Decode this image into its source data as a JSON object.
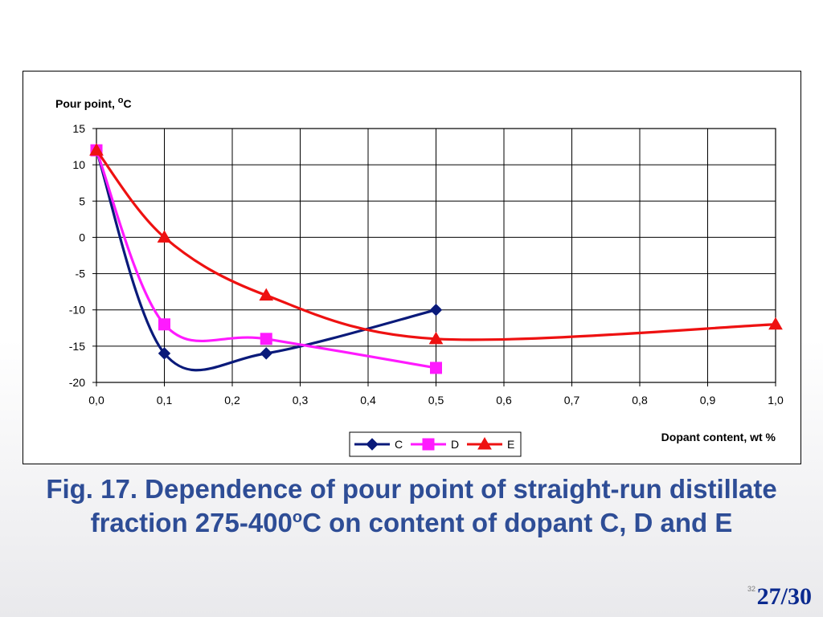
{
  "chart_data": {
    "type": "line",
    "ylabel": "Pour point, ",
    "ylabel_unit_sup": "o",
    "ylabel_unit": "C",
    "xlabel": "Dopant content, wt %",
    "xlim": [
      0,
      1
    ],
    "ylim": [
      -20,
      15
    ],
    "x_ticks": [
      "0,0",
      "0,1",
      "0,2",
      "0,3",
      "0,4",
      "0,5",
      "0,6",
      "0,7",
      "0,8",
      "0,9",
      "1,0"
    ],
    "y_ticks": [
      "15",
      "10",
      "5",
      "0",
      "-5",
      "-10",
      "-15",
      "-20"
    ],
    "grid": true,
    "legend_position": "bottom-center",
    "series": [
      {
        "name": "C",
        "color": "#0a1a7a",
        "marker": "diamond",
        "x": [
          0,
          0.1,
          0.25,
          0.5
        ],
        "y": [
          12,
          -16,
          -16,
          -10
        ]
      },
      {
        "name": "D",
        "color": "#ff1aff",
        "marker": "square",
        "x": [
          0,
          0.1,
          0.25,
          0.5
        ],
        "y": [
          12,
          -12,
          -14,
          -18
        ]
      },
      {
        "name": "E",
        "color": "#ee1111",
        "marker": "triangle",
        "x": [
          0,
          0.1,
          0.25,
          0.5,
          1.0
        ],
        "y": [
          12,
          0,
          -8,
          -14,
          -12
        ]
      }
    ]
  },
  "caption": {
    "part1": "Fig. 17. Dependence of pour point of straight-run distillate fraction 275-400",
    "sup": "o",
    "part2": "C on content of dopant C, D and E"
  },
  "slide_number": "32",
  "page_counter": "27/30"
}
